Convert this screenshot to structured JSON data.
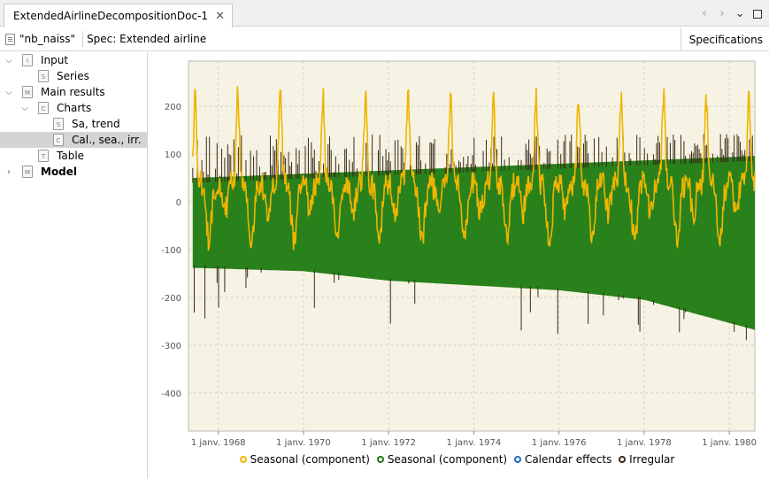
{
  "tab": {
    "title": "ExtendedAirlineDecompositionDoc-1",
    "close_glyph": "✕"
  },
  "window_controls": {
    "prev": "‹",
    "next": "›",
    "menu": "⌄"
  },
  "toolbar": {
    "series_name": "\"nb_naiss\"",
    "spec_label": "Spec: Extended airline",
    "right_button": "Specifications"
  },
  "tree": {
    "items": [
      {
        "label": "Input",
        "icon": "I"
      },
      {
        "label": "Series",
        "icon": "S"
      },
      {
        "label": "Main results",
        "icon": "M"
      },
      {
        "label": "Charts",
        "icon": "C"
      },
      {
        "label": "Sa, trend",
        "icon": "S"
      },
      {
        "label": "Cal., sea., irr.",
        "icon": "C"
      },
      {
        "label": "Table",
        "icon": "T"
      },
      {
        "label": "Model",
        "icon": "M"
      }
    ]
  },
  "colors": {
    "plot_bg": "#f6f3e5",
    "green": "#1e7a10",
    "gold": "#f0b400",
    "dark": "#3a2a14",
    "calendar": "#1c70b8"
  },
  "chart_data": {
    "type": "line",
    "title": "",
    "xlabel": "",
    "ylabel": "",
    "x_ticks": [
      "1 janv. 1968",
      "1 janv. 1970",
      "1 janv. 1972",
      "1 janv. 1974",
      "1 janv. 1976",
      "1 janv. 1978",
      "1 janv. 1980"
    ],
    "x_range": [
      1967.3,
      1980.6
    ],
    "ylim": [
      -480,
      295
    ],
    "y_ticks": [
      200,
      100,
      0,
      -100,
      -200,
      -300,
      -400
    ],
    "grid": true,
    "legend_position": "bottom",
    "series": [
      {
        "name": "Seasonal (component)",
        "color": "#f0b400",
        "kind": "line",
        "peak_month": 6,
        "amplitude": 240
      },
      {
        "name": "Seasonal (component)",
        "color": "#1e7a10",
        "kind": "band",
        "upper": [
          [
            1967.4,
            50
          ],
          [
            1980.6,
            96
          ]
        ],
        "lower": [
          [
            1967.4,
            -138
          ],
          [
            1970.0,
            -145
          ],
          [
            1972.0,
            -165
          ],
          [
            1974.0,
            -175
          ],
          [
            1976.0,
            -185
          ],
          [
            1978.0,
            -205
          ],
          [
            1980.6,
            -268
          ]
        ]
      },
      {
        "name": "Calendar effects",
        "color": "#1c70b8",
        "kind": "marker"
      },
      {
        "name": "Irregular",
        "color": "#3a2a14",
        "kind": "spikes",
        "spike_max": 150,
        "spike_min": -300
      }
    ]
  }
}
